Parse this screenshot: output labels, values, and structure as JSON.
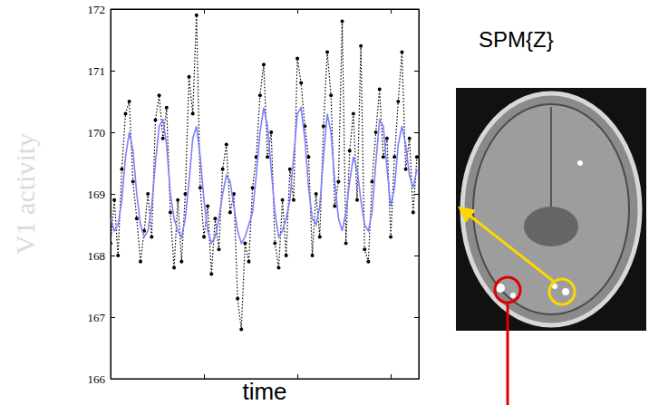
{
  "chart_data": {
    "type": "line",
    "x_label": "time",
    "y_label": "V1 activity",
    "annotations": [
      "SPM{Z}"
    ],
    "x": [
      0,
      4,
      8,
      12,
      16,
      20,
      24,
      28,
      32,
      36,
      40,
      44,
      48,
      52,
      56,
      60,
      64,
      68,
      72,
      76,
      80,
      84,
      88,
      92,
      96,
      100,
      104,
      108,
      112,
      116,
      120,
      124,
      128,
      132,
      136,
      140,
      144,
      148,
      152,
      156,
      160,
      164,
      168,
      172,
      176,
      180,
      184,
      188,
      192,
      196,
      200,
      204,
      208,
      212,
      216,
      220,
      224,
      228,
      232,
      236,
      240,
      244,
      248,
      252,
      256,
      260,
      264,
      268,
      272,
      276,
      280,
      284,
      288,
      292,
      296,
      300,
      304,
      308,
      312,
      316,
      320,
      324,
      328
    ],
    "xlim": [
      0,
      330
    ],
    "xticks": [
      0,
      100,
      200,
      300
    ],
    "ylim": [
      166,
      172
    ],
    "yticks": [
      166,
      167,
      168,
      169,
      170,
      171,
      172
    ],
    "tick_labels": "y",
    "series": [
      {
        "color": "#000000",
        "marker": "point",
        "line_style": "dotted",
        "values": [
          168.2,
          168.9,
          168.0,
          169.4,
          170.3,
          170.5,
          169.2,
          168.6,
          167.9,
          168.4,
          169.0,
          168.3,
          170.2,
          170.6,
          169.9,
          170.4,
          168.7,
          167.8,
          168.9,
          167.9,
          169.0,
          170.9,
          170.3,
          171.9,
          169.1,
          168.3,
          168.8,
          167.7,
          168.6,
          168.1,
          169.4,
          169.8,
          168.7,
          169.0,
          167.3,
          166.8,
          168.2,
          167.9,
          169.1,
          169.6,
          170.6,
          171.1,
          169.6,
          170.0,
          168.2,
          167.8,
          168.9,
          168.0,
          169.4,
          168.9,
          171.2,
          170.8,
          170.1,
          169.6,
          168.0,
          169.0,
          168.3,
          170.1,
          171.3,
          170.6,
          168.8,
          169.2,
          171.8,
          168.2,
          169.7,
          170.3,
          168.9,
          171.4,
          168.1,
          167.9,
          169.2,
          170.0,
          170.7,
          169.6,
          169.9,
          168.3,
          169.6,
          170.5,
          171.3,
          169.4,
          169.9,
          168.7,
          169.6
        ]
      },
      {
        "color": "#7f7fff",
        "line_style": "solid",
        "values": [
          168.6,
          168.4,
          168.5,
          168.9,
          169.6,
          170.0,
          169.7,
          169.0,
          168.5,
          168.3,
          168.4,
          168.8,
          169.5,
          170.1,
          170.2,
          169.8,
          169.0,
          168.6,
          168.4,
          168.3,
          168.6,
          169.2,
          169.9,
          170.1,
          169.6,
          168.9,
          168.4,
          168.2,
          168.3,
          168.6,
          169.0,
          169.3,
          169.2,
          168.8,
          168.4,
          168.2,
          168.3,
          168.5,
          168.7,
          169.3,
          170.0,
          170.4,
          170.1,
          169.4,
          168.7,
          168.3,
          168.4,
          168.6,
          168.9,
          169.6,
          170.3,
          170.4,
          169.9,
          169.1,
          168.6,
          168.5,
          168.8,
          169.6,
          170.3,
          170.0,
          169.2,
          168.6,
          168.4,
          168.7,
          169.2,
          169.6,
          169.4,
          168.9,
          168.5,
          168.4,
          168.7,
          169.5,
          170.2,
          170.1,
          169.4,
          168.8,
          169.1,
          169.8,
          170.1,
          169.8,
          169.3,
          169.1,
          169.4
        ]
      }
    ]
  }
}
